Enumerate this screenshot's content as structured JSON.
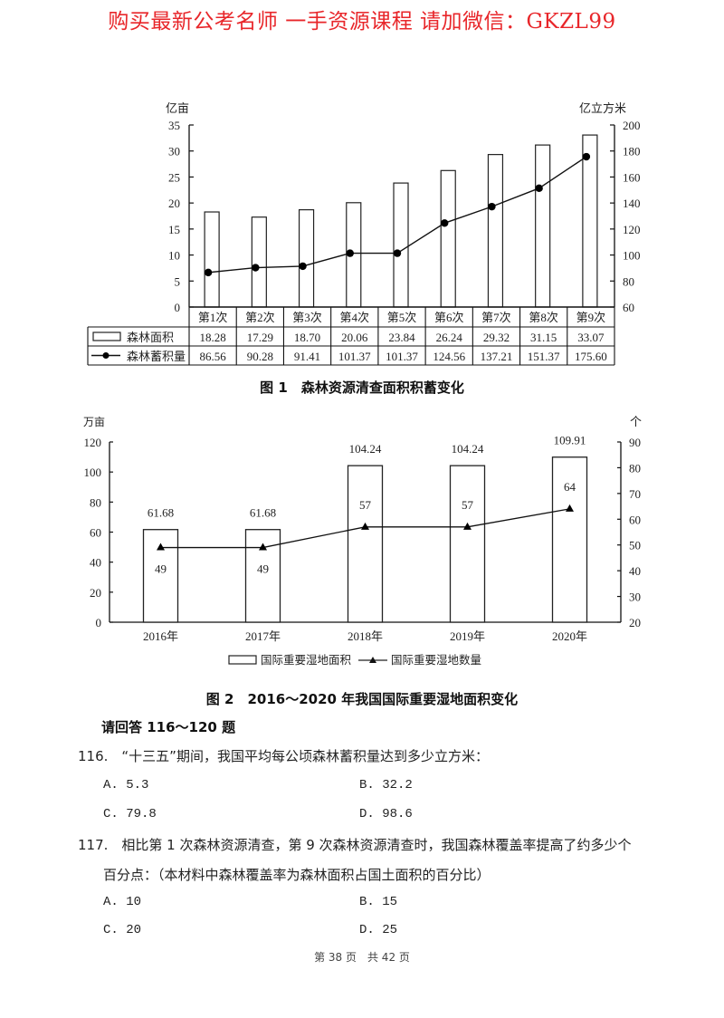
{
  "banner": "购买最新公考名师 一手资源课程 请加微信：GKZL99",
  "figure1": {
    "caption": "图 1　森林资源清查面积积蓄变化",
    "left_unit": "亿亩",
    "right_unit": "亿立方米",
    "left_ticks": [
      "0",
      "5",
      "10",
      "15",
      "20",
      "25",
      "30",
      "35"
    ],
    "right_ticks": [
      "60",
      "80",
      "100",
      "120",
      "140",
      "160",
      "180",
      "200"
    ],
    "categories": [
      "第1次",
      "第2次",
      "第3次",
      "第4次",
      "第5次",
      "第6次",
      "第7次",
      "第8次",
      "第9次"
    ],
    "row1_label": "森林面积",
    "row2_label": "森林蓄积量",
    "row1_values": [
      "18.28",
      "17.29",
      "18.70",
      "20.06",
      "23.84",
      "26.24",
      "29.32",
      "31.15",
      "33.07"
    ],
    "row2_values": [
      "86.56",
      "90.28",
      "91.41",
      "101.37",
      "101.37",
      "124.56",
      "137.21",
      "151.37",
      "175.60"
    ]
  },
  "figure2": {
    "caption": "图 2　2016～2020 年我国国际重要湿地面积变化",
    "left_unit": "万亩",
    "right_unit": "个",
    "left_ticks": [
      "0",
      "20",
      "40",
      "60",
      "80",
      "100",
      "120"
    ],
    "right_ticks": [
      "20",
      "30",
      "40",
      "50",
      "60",
      "70",
      "80",
      "90"
    ],
    "categories": [
      "2016年",
      "2017年",
      "2018年",
      "2019年",
      "2020年"
    ],
    "bar_labels": [
      "61.68",
      "61.68",
      "104.24",
      "104.24",
      "109.91"
    ],
    "line_labels": [
      "49",
      "49",
      "57",
      "57",
      "64"
    ],
    "legend_bar": "国际重要湿地面积",
    "legend_line": "国际重要湿地数量"
  },
  "chart_data": [
    {
      "type": "bar+line",
      "title": "图1 森林资源清查面积积蓄变化",
      "categories": [
        "第1次",
        "第2次",
        "第3次",
        "第4次",
        "第5次",
        "第6次",
        "第7次",
        "第8次",
        "第9次"
      ],
      "series": [
        {
          "name": "森林面积",
          "type": "bar",
          "axis": "left",
          "unit": "亿亩",
          "values": [
            18.28,
            17.29,
            18.7,
            20.06,
            23.84,
            26.24,
            29.32,
            31.15,
            33.07
          ]
        },
        {
          "name": "森林蓄积量",
          "type": "line",
          "axis": "right",
          "unit": "亿立方米",
          "values": [
            86.56,
            90.28,
            91.41,
            101.37,
            101.37,
            124.56,
            137.21,
            151.37,
            175.6
          ]
        }
      ],
      "ylabel_left": "亿亩",
      "ylim_left": [
        0,
        35
      ],
      "ylabel_right": "亿立方米",
      "ylim_right": [
        60,
        200
      ],
      "legend_position": "data table below chart"
    },
    {
      "type": "bar+line",
      "title": "图2 2016～2020年我国国际重要湿地面积变化",
      "categories": [
        "2016年",
        "2017年",
        "2018年",
        "2019年",
        "2020年"
      ],
      "series": [
        {
          "name": "国际重要湿地面积",
          "type": "bar",
          "axis": "left",
          "unit": "万亩",
          "values": [
            61.68,
            61.68,
            104.24,
            104.24,
            109.91
          ]
        },
        {
          "name": "国际重要湿地数量",
          "type": "line",
          "axis": "right",
          "unit": "个",
          "values": [
            49,
            49,
            57,
            57,
            64
          ]
        }
      ],
      "ylabel_left": "万亩",
      "ylim_left": [
        0,
        120
      ],
      "ylabel_right": "个",
      "ylim_right": [
        20,
        90
      ],
      "legend_position": "bottom"
    }
  ],
  "questions": {
    "section_title": "请回答 116～120 题",
    "q116": {
      "text": "116.　“十三五”期间，我国平均每公顷森林蓄积量达到多少立方米：",
      "options": [
        "A. 5.3",
        "B. 32.2",
        "C. 79.8",
        "D. 98.6"
      ]
    },
    "q117": {
      "text_line1": "117.　相比第 1 次森林资源清查，第 9 次森林资源清查时，我国森林覆盖率提高了约多少个",
      "text_line2": "百分点：（本材料中森林覆盖率为森林面积占国土面积的百分比）",
      "options": [
        "A. 10",
        "B. 15",
        "C. 20",
        "D. 25"
      ]
    }
  },
  "footer": "第 38 页　共 42 页"
}
